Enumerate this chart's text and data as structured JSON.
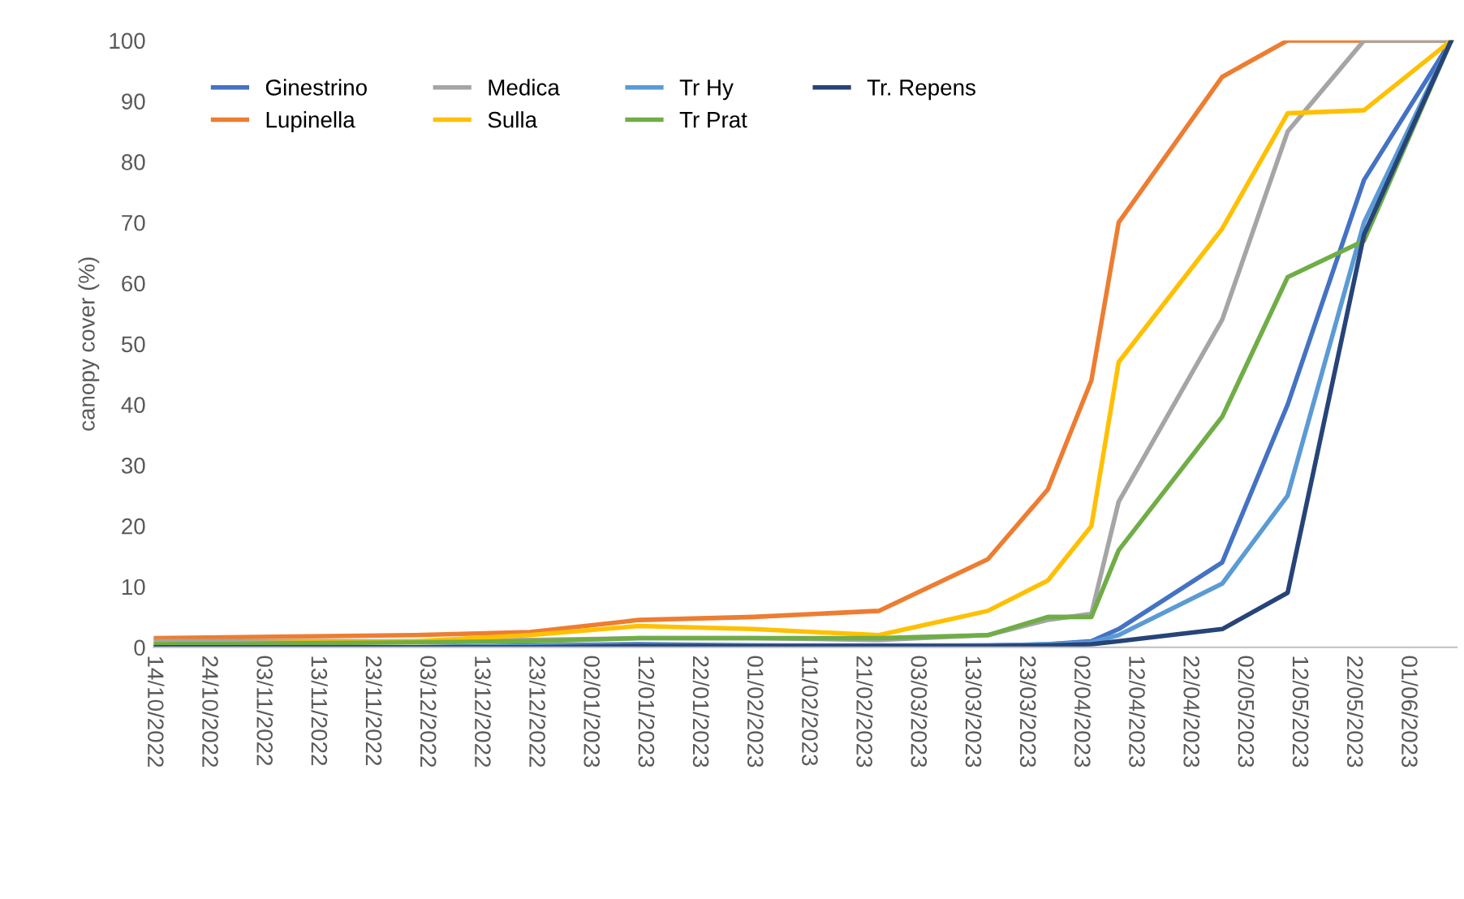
{
  "chart_data": {
    "type": "line",
    "ylabel": "canopy cover (%)",
    "x": [
      "2022-10-14",
      "2022-12-01",
      "2022-12-22",
      "2023-01-11",
      "2023-02-01",
      "2023-02-24",
      "2023-03-16",
      "2023-03-27",
      "2023-04-04",
      "2023-04-09",
      "2023-04-28",
      "2023-05-10",
      "2023-05-24",
      "2023-06-09"
    ],
    "series": [
      {
        "name": "Ginestrino",
        "color": "#4472c4",
        "values": [
          0,
          0,
          0.3,
          0.5,
          0.3,
          0.3,
          0.3,
          0.5,
          1,
          3,
          14,
          40,
          77,
          100
        ]
      },
      {
        "name": "Lupinella",
        "color": "#ed7d31",
        "values": [
          1.5,
          2,
          2.5,
          4.5,
          5,
          6,
          14.5,
          26,
          44,
          70,
          94,
          100,
          100,
          100
        ]
      },
      {
        "name": "Medica",
        "color": "#a5a5a5",
        "values": [
          1,
          1,
          1.2,
          1.5,
          1.5,
          1.2,
          2,
          4.5,
          5.5,
          24,
          54,
          85,
          100,
          100
        ]
      },
      {
        "name": "Sulla",
        "color": "#ffc000",
        "values": [
          0.5,
          1,
          2,
          3.5,
          3,
          2,
          6,
          11,
          20,
          47,
          69,
          88,
          88.5,
          100
        ]
      },
      {
        "name": "Tr Hy",
        "color": "#5b9bd5",
        "values": [
          0,
          0,
          0.2,
          0.3,
          0.3,
          0.2,
          0.3,
          0.5,
          0.8,
          2,
          10.5,
          25,
          70,
          100
        ]
      },
      {
        "name": "Tr Prat",
        "color": "#70ad47",
        "values": [
          0.5,
          0.8,
          1,
          1.5,
          1.5,
          1.5,
          2,
          5,
          5,
          16,
          38,
          61,
          67,
          100
        ]
      },
      {
        "name": "Tr. Repens",
        "color": "#264478",
        "values": [
          0,
          0,
          0,
          0.2,
          0.2,
          0.2,
          0.2,
          0.3,
          0.5,
          1,
          3,
          9,
          68,
          100
        ]
      }
    ],
    "xlim": [
      "2022-10-14",
      "2023-06-10"
    ],
    "xticks": [
      {
        "value": "2022-10-14",
        "label": "14/10/2022"
      },
      {
        "value": "2022-10-24",
        "label": "24/10/2022"
      },
      {
        "value": "2022-11-03",
        "label": "03/11/2022"
      },
      {
        "value": "2022-11-13",
        "label": "13/11/2022"
      },
      {
        "value": "2022-11-23",
        "label": "23/11/2022"
      },
      {
        "value": "2022-12-03",
        "label": "03/12/2022"
      },
      {
        "value": "2022-12-13",
        "label": "13/12/2022"
      },
      {
        "value": "2022-12-23",
        "label": "23/12/2022"
      },
      {
        "value": "2023-01-02",
        "label": "02/01/2023"
      },
      {
        "value": "2023-01-12",
        "label": "12/01/2023"
      },
      {
        "value": "2023-01-22",
        "label": "22/01/2023"
      },
      {
        "value": "2023-02-01",
        "label": "01/02/2023"
      },
      {
        "value": "2023-02-11",
        "label": "11/02/2023"
      },
      {
        "value": "2023-02-21",
        "label": "21/02/2023"
      },
      {
        "value": "2023-03-03",
        "label": "03/03/2023"
      },
      {
        "value": "2023-03-13",
        "label": "13/03/2023"
      },
      {
        "value": "2023-03-23",
        "label": "23/03/2023"
      },
      {
        "value": "2023-04-02",
        "label": "02/04/2023"
      },
      {
        "value": "2023-04-12",
        "label": "12/04/2023"
      },
      {
        "value": "2023-04-22",
        "label": "22/04/2023"
      },
      {
        "value": "2023-05-02",
        "label": "02/05/2023"
      },
      {
        "value": "2023-05-12",
        "label": "12/05/2023"
      },
      {
        "value": "2023-05-22",
        "label": "22/05/2023"
      },
      {
        "value": "2023-06-01",
        "label": "01/06/2023"
      }
    ],
    "ylim": [
      0,
      100
    ],
    "yticks": [
      0,
      10,
      20,
      30,
      40,
      50,
      60,
      70,
      80,
      90,
      100
    ],
    "legend": "top left",
    "grid": false,
    "marker": "none",
    "line_style": "solid"
  }
}
